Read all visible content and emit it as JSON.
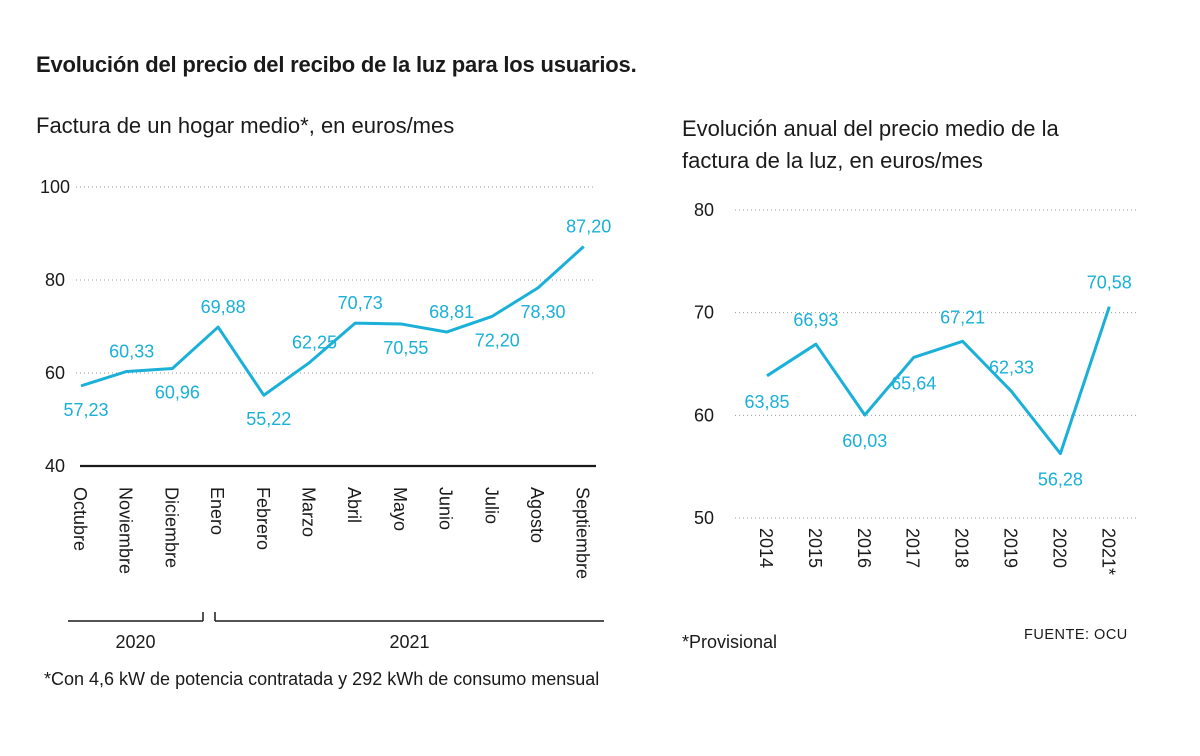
{
  "title": "Evolución del precio del recibo de la luz para los usuarios.",
  "left_subtitle": "Factura de un hogar medio*, en euros/mes",
  "right_subtitle": "Evolución anual del precio medio de la factura de la luz, en euros/mes",
  "left_footnote": "*Con 4,6 kW de potencia contratada y 292 kWh de consumo mensual",
  "right_footnote": "*Provisional",
  "source": "FUENTE: OCU",
  "colors": {
    "line": "#1ab0d8",
    "text": "#1a1a1a",
    "grid": "#9a9a9a"
  },
  "chart_data": [
    {
      "type": "line",
      "title": "Factura de un hogar medio*, en euros/mes",
      "categories": [
        "Octubre",
        "Noviembre",
        "Diciembre",
        "Enero",
        "Febrero",
        "Marzo",
        "Abril",
        "Mayo",
        "Junio",
        "Julio",
        "Agosto",
        "Septiembre"
      ],
      "values": [
        57.23,
        60.33,
        60.96,
        69.88,
        55.22,
        62.25,
        70.73,
        70.55,
        68.81,
        72.2,
        78.3,
        87.2
      ],
      "labels": [
        "57,23",
        "60,33",
        "60,96",
        "69,88",
        "55,22",
        "62,25",
        "70,73",
        "70,55",
        "68,81",
        "72,20",
        "78,30",
        "87,20"
      ],
      "yticks": [
        "100",
        "80",
        "60",
        "40"
      ],
      "ylim": [
        40,
        100
      ],
      "year_groups": [
        {
          "label": "2020",
          "count": 3
        },
        {
          "label": "2021",
          "count": 9
        }
      ],
      "grid": true
    },
    {
      "type": "line",
      "title": "Evolución anual del precio medio de la factura de la luz, en euros/mes",
      "categories": [
        "2014",
        "2015",
        "2016",
        "2017",
        "2018",
        "2019",
        "2020",
        "2021*"
      ],
      "values": [
        63.85,
        66.93,
        60.03,
        65.64,
        67.21,
        62.33,
        56.28,
        70.58
      ],
      "labels": [
        "63,85",
        "66,93",
        "60,03",
        "65,64",
        "67,21",
        "62,33",
        "56,28",
        "70,58"
      ],
      "yticks": [
        "80",
        "70",
        "60",
        "50"
      ],
      "ylim": [
        50,
        80
      ],
      "grid": true
    }
  ]
}
